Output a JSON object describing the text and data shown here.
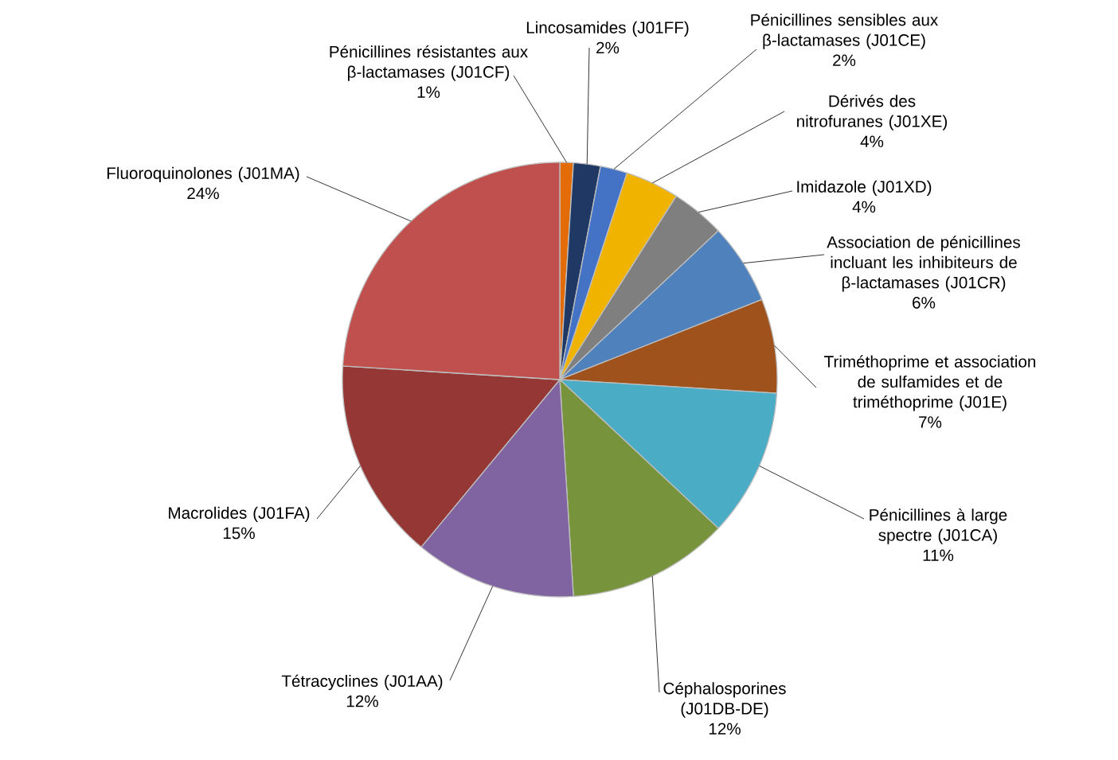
{
  "chart_data": {
    "type": "pie",
    "categories": [
      "Pénicillines résistantes aux β-lactamases (J01CF)",
      "Lincosamides (J01FF)",
      "Pénicillines sensibles aux β-lactamases (J01CE)",
      "Dérivés des nitrofuranes (J01XE)",
      "Imidazole (J01XD)",
      "Association de pénicillines incluant les inhibiteurs de β-lactamases (J01CR)",
      "Triméthoprime et association de sulfamides et de triméthoprime (J01E)",
      "Pénicillines à large spectre (J01CA)",
      "Céphalosporines (J01DB-DE)",
      "Tétracyclines (J01AA)",
      "Macrolides (J01FA)",
      "Fluoroquinolones (J01MA)"
    ],
    "values": [
      1,
      2,
      2,
      4,
      4,
      6,
      7,
      11,
      12,
      12,
      15,
      24
    ],
    "value_labels": [
      "1%",
      "2%",
      "2%",
      "4%",
      "4%",
      "6%",
      "7%",
      "11%",
      "12%",
      "12%",
      "15%",
      "24%"
    ],
    "colors": [
      "#e36c09",
      "#1f3864",
      "#4472c4",
      "#f0b400",
      "#7f7f7f",
      "#4f81bd",
      "#a0521c",
      "#4bacc6",
      "#77933c",
      "#8064a2",
      "#953735",
      "#c0504d"
    ]
  }
}
